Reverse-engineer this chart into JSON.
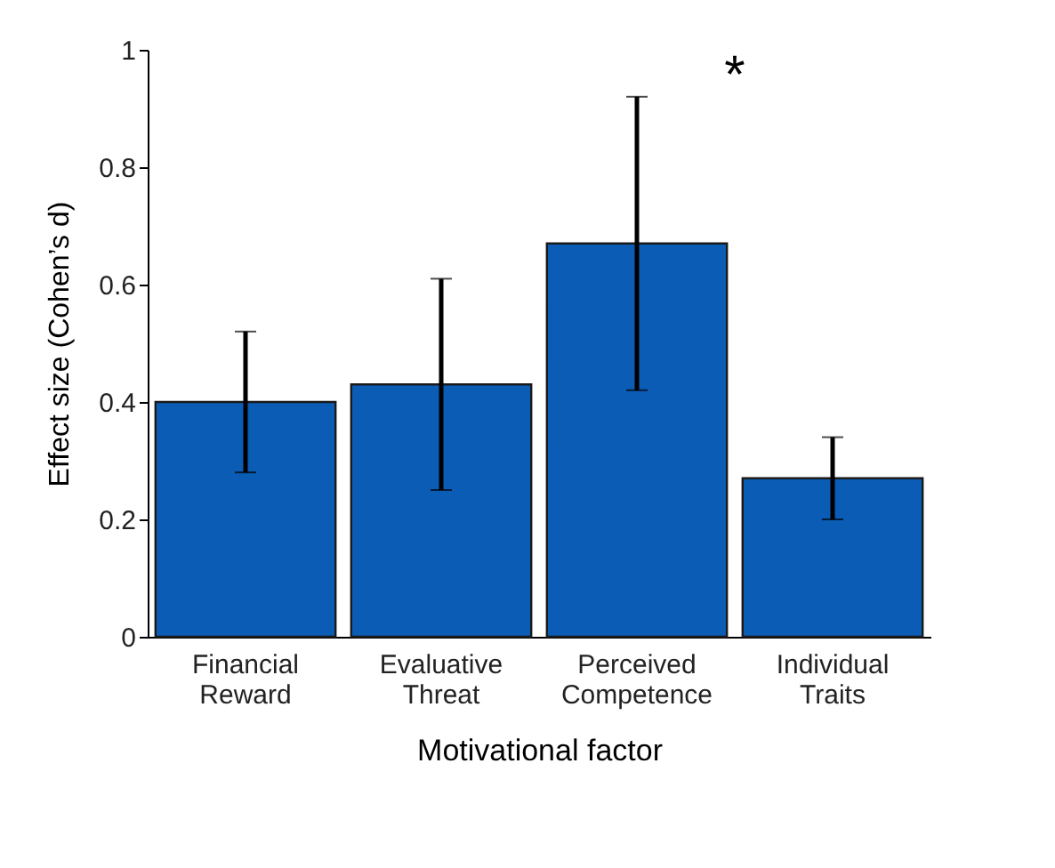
{
  "chart_data": {
    "type": "bar",
    "xlabel": "Motivational factor",
    "ylabel": "Effect size (Cohen’s d)",
    "categories": [
      "Financial Reward",
      "Evaluative Threat",
      "Perceived Competence",
      "Individual Traits"
    ],
    "values": [
      0.4,
      0.43,
      0.67,
      0.27
    ],
    "errors": [
      [
        0.28,
        0.52
      ],
      [
        0.25,
        0.61
      ],
      [
        0.42,
        0.92
      ],
      [
        0.2,
        0.34
      ]
    ],
    "color": "#0b5cb5",
    "ylim": [
      0,
      1
    ],
    "yticks": [
      0,
      0.2,
      0.4,
      0.6,
      0.8,
      1
    ],
    "grid": false,
    "annotations": [
      "*"
    ]
  }
}
